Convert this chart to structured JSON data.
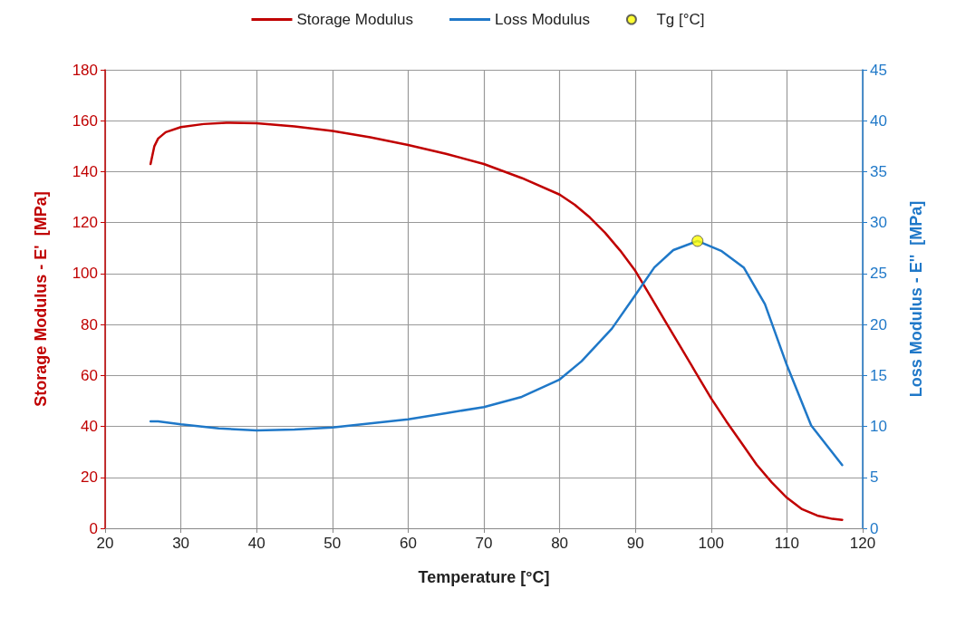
{
  "chart_data": {
    "type": "line",
    "xlabel": "Temperature [°C]",
    "ylabel": "Storage Modulus - E'  [MPa]",
    "y2label": "Loss Modulus - E''  [MPa]",
    "xlim": [
      20,
      120
    ],
    "xticks": [
      20,
      30,
      40,
      50,
      60,
      70,
      80,
      90,
      100,
      110,
      120
    ],
    "ylim": [
      0,
      180
    ],
    "yticks": [
      0,
      20,
      40,
      60,
      80,
      100,
      120,
      140,
      160,
      180
    ],
    "y2lim": [
      0,
      45
    ],
    "y2ticks": [
      0,
      5,
      10,
      15,
      20,
      25,
      30,
      35,
      40,
      45
    ],
    "grid": true,
    "legend": "top",
    "line_style": "solid",
    "series": [
      {
        "name": "Storage Modulus",
        "color": "#c00000",
        "axis": "y",
        "x": [
          26,
          26.5,
          27,
          28,
          30,
          33,
          36,
          40,
          45,
          50,
          55,
          60,
          65,
          70,
          75,
          80,
          82,
          84,
          86,
          88,
          90,
          92,
          94,
          96,
          98,
          100,
          102,
          104,
          106,
          108,
          110,
          112,
          114,
          116,
          117.3
        ],
        "values": [
          143,
          150,
          153,
          155.5,
          157.5,
          158.7,
          159.2,
          159,
          157.8,
          156,
          153.5,
          150.5,
          147,
          143,
          137.5,
          131,
          127,
          122,
          116,
          109,
          101,
          91,
          81,
          71,
          61,
          51,
          42,
          33.5,
          25,
          18,
          12,
          7.5,
          5,
          3.7,
          3.3
        ]
      },
      {
        "name": "Loss Modulus",
        "color": "#1f78c8",
        "axis": "y2",
        "x": [
          26,
          27,
          30,
          35,
          40,
          45,
          50,
          55,
          60,
          65,
          70,
          75,
          80,
          82.9,
          86.9,
          90,
          92.5,
          95,
          98.2,
          101.4,
          104.3,
          107.1,
          110,
          113.2,
          117.3
        ],
        "values": [
          10.5,
          10.5,
          10.2,
          9.8,
          9.6,
          9.7,
          9.9,
          10.3,
          10.7,
          11.3,
          11.9,
          12.9,
          14.6,
          16.4,
          19.6,
          22.9,
          25.6,
          27.3,
          28.2,
          27.2,
          25.6,
          22,
          16,
          10.1,
          6.2
        ]
      },
      {
        "name": "Tg [°C]",
        "color": "#ffff00",
        "type": "scatter",
        "axis": "y2",
        "marker": "circle",
        "x": [
          98.2
        ],
        "values": [
          28.2
        ]
      }
    ]
  }
}
